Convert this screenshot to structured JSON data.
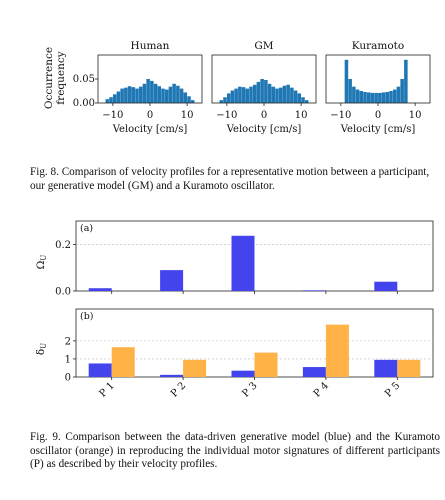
{
  "figure8": {
    "ylabel_line1": "Occurrence",
    "ylabel_line2": "frequency",
    "y_ticks": [
      "0.05",
      "0.00"
    ],
    "caption": "Fig. 8.  Comparison of velocity profiles for a representative motion between a participant, our generative model (GM) and a Kuramoto oscillator."
  },
  "figure9": {
    "caption": "Fig. 9.   Comparison between the data-driven generative model (blue) and the Kuramoto oscillator (orange) in reproducing the individual motor signatures of different participants (P) as described by their velocity profiles."
  },
  "chart_data": [
    {
      "type": "bar",
      "title": "Human",
      "xlabel": "Velocity [cm/s]",
      "ylabel": "Occurrence frequency",
      "xlim": [
        -14,
        14
      ],
      "ylim": [
        0,
        0.1
      ],
      "x_ticks": [
        -10,
        0,
        10
      ],
      "y_ticks": [
        0.0,
        0.05
      ],
      "color": "#1f77b4",
      "bin_centers": [
        -11.5,
        -10.5,
        -9.5,
        -8.5,
        -7.5,
        -6.5,
        -5.5,
        -4.5,
        -3.5,
        -2.5,
        -1.5,
        -0.5,
        0.5,
        1.5,
        2.5,
        3.5,
        4.5,
        5.5,
        6.5,
        7.5,
        8.5,
        9.5,
        10.5,
        11.5
      ],
      "values": [
        0.008,
        0.012,
        0.018,
        0.024,
        0.03,
        0.032,
        0.035,
        0.033,
        0.03,
        0.034,
        0.04,
        0.05,
        0.046,
        0.04,
        0.035,
        0.03,
        0.028,
        0.034,
        0.04,
        0.036,
        0.03,
        0.022,
        0.014,
        0.006
      ]
    },
    {
      "type": "bar",
      "title": "GM",
      "xlabel": "Velocity [cm/s]",
      "xlim": [
        -14,
        14
      ],
      "ylim": [
        0,
        0.1
      ],
      "x_ticks": [
        -10,
        0,
        10
      ],
      "color": "#1f77b4",
      "bin_centers": [
        -11.5,
        -10.5,
        -9.5,
        -8.5,
        -7.5,
        -6.5,
        -5.5,
        -4.5,
        -3.5,
        -2.5,
        -1.5,
        -0.5,
        0.5,
        1.5,
        2.5,
        3.5,
        4.5,
        5.5,
        6.5,
        7.5,
        8.5,
        9.5,
        10.5,
        11.5
      ],
      "values": [
        0.006,
        0.012,
        0.02,
        0.026,
        0.03,
        0.034,
        0.033,
        0.03,
        0.034,
        0.038,
        0.044,
        0.05,
        0.048,
        0.04,
        0.034,
        0.03,
        0.032,
        0.036,
        0.038,
        0.032,
        0.026,
        0.02,
        0.012,
        0.006
      ]
    },
    {
      "type": "bar",
      "title": "Kuramoto",
      "xlabel": "Velocity [cm/s]",
      "xlim": [
        -14,
        14
      ],
      "ylim": [
        0,
        0.1
      ],
      "x_ticks": [
        -10,
        0,
        10
      ],
      "color": "#1f77b4",
      "bin_centers": [
        -8.5,
        -7.5,
        -6.5,
        -5.5,
        -4.5,
        -3.5,
        -2.5,
        -1.5,
        -0.5,
        0.5,
        1.5,
        2.5,
        3.5,
        4.5,
        5.5,
        6.5,
        7.5
      ],
      "values": [
        0.09,
        0.05,
        0.034,
        0.028,
        0.025,
        0.023,
        0.022,
        0.021,
        0.021,
        0.021,
        0.022,
        0.023,
        0.025,
        0.028,
        0.034,
        0.05,
        0.09
      ]
    },
    {
      "type": "bar",
      "panel": "(a)",
      "ylabel": "Ω_U",
      "categories": [
        "P 1",
        "P 2",
        "P 3",
        "P 4",
        "P 5"
      ],
      "ylim": [
        0,
        0.25
      ],
      "y_ticks": [
        "0.0",
        "0.2"
      ],
      "grid": true,
      "series": [
        {
          "color": "#4444ee",
          "values": [
            0.012,
            0.09,
            0.238,
            0.003,
            0.04
          ]
        },
        {
          "color": "#ffb347",
          "values": [
            0.0,
            0.0,
            0.0,
            0.0,
            0.0
          ]
        }
      ]
    },
    {
      "type": "bar",
      "panel": "(b)",
      "ylabel": "δ_U",
      "categories": [
        "P 1",
        "P 2",
        "P 3",
        "P 4",
        "P 5"
      ],
      "ylim": [
        0,
        3.1
      ],
      "y_ticks": [
        "0",
        "1",
        "2"
      ],
      "grid": true,
      "series": [
        {
          "color": "#4444ee",
          "values": [
            0.75,
            0.12,
            0.35,
            0.55,
            0.95
          ]
        },
        {
          "color": "#ffb347",
          "values": [
            1.65,
            0.95,
            1.35,
            2.9,
            0.95
          ]
        }
      ]
    }
  ]
}
